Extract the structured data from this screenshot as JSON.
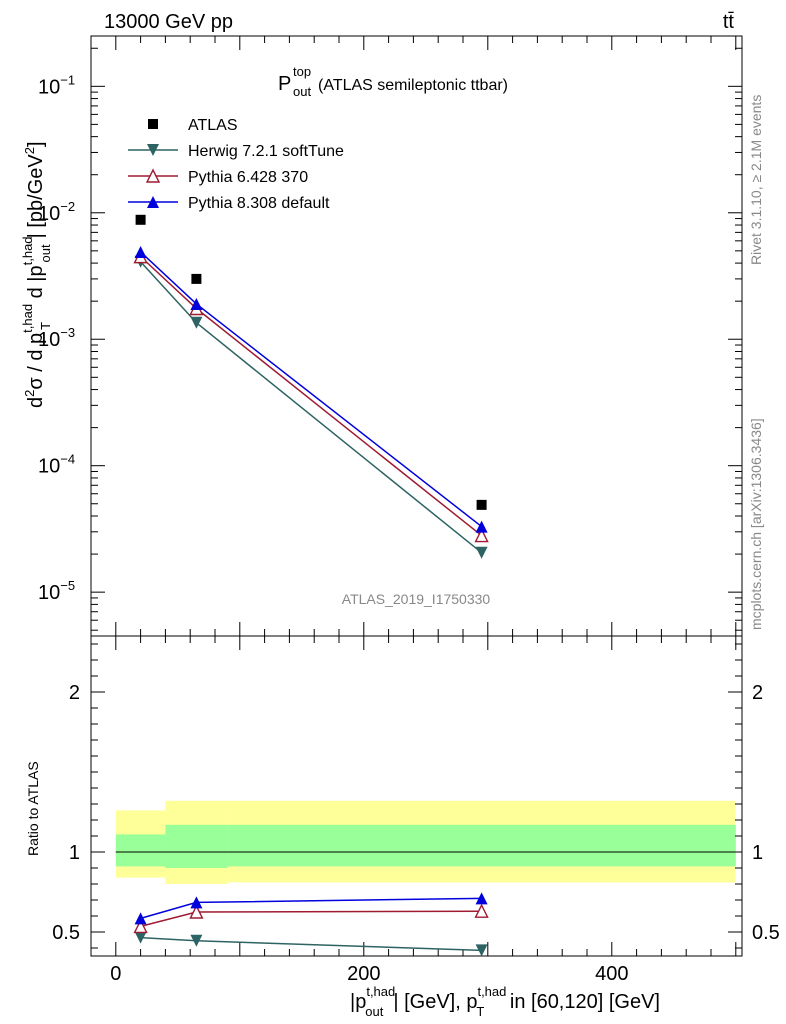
{
  "header": {
    "energy_label": "13000 GeV pp",
    "process_label": "tt̄"
  },
  "side_labels": {
    "rivet": "Rivet 3.1.10, ≥ 2.1M events",
    "mcplots": "mcplots.cern.ch [arXiv:1306.3436]"
  },
  "watermark": "ATLAS_2019_I1750330",
  "colors": {
    "atlas": "#000000",
    "herwig": "#2e6363",
    "pythia6": "#9e1b32",
    "pythia8": "#0000dd",
    "band_inner": "#99ff99",
    "band_outer": "#ffff99"
  },
  "chart_data": [
    {
      "type": "scatter",
      "panel": "main",
      "title": {
        "main": "P",
        "sup": "top",
        "sub": "out",
        "rest": " (ATLAS semileptonic ttbar)"
      },
      "ylabel": "d²σ / d p_T^{t,had} d |p_out^{t,had}| [pb/GeV²]",
      "yscale": "log",
      "ylim": [
        4.5e-06,
        0.25
      ],
      "xlim": [
        -20,
        505
      ],
      "yticks": [
        {
          "value": 1e-05,
          "base": "10",
          "exp": "−5"
        },
        {
          "value": 0.0001,
          "base": "10",
          "exp": "−4"
        },
        {
          "value": 0.001,
          "base": "10",
          "exp": "−3"
        },
        {
          "value": 0.01,
          "base": "10",
          "exp": "−2"
        },
        {
          "value": 0.1,
          "base": "10",
          "exp": "−1"
        }
      ],
      "legend_position": "top-left",
      "series": [
        {
          "name": "ATLAS",
          "marker": "square",
          "line": false,
          "x": [
            20,
            65,
            295
          ],
          "y": [
            0.0088,
            0.003,
            4.9e-05
          ]
        },
        {
          "name": "Herwig 7.2.1 softTune",
          "marker": "triangle-down",
          "line": true,
          "x": [
            20,
            65,
            295
          ],
          "y": [
            0.0041,
            0.00135,
            2.05e-05
          ]
        },
        {
          "name": "Pythia 6.428 370",
          "marker": "triangle-up-open",
          "line": true,
          "x": [
            20,
            65,
            295
          ],
          "y": [
            0.0045,
            0.00175,
            2.8e-05
          ]
        },
        {
          "name": "Pythia 8.308 default",
          "marker": "triangle-up",
          "line": true,
          "x": [
            20,
            65,
            295
          ],
          "y": [
            0.0049,
            0.0019,
            3.3e-05
          ]
        }
      ]
    },
    {
      "type": "line",
      "panel": "ratio",
      "ylabel": "Ratio to ATLAS",
      "xlabel": "|p_out^{t,had}| [GeV], p_T^{t,had} in [60,120] [GeV]",
      "ylim": [
        0.35,
        2.35
      ],
      "xlim": [
        -20,
        505
      ],
      "xticks": [
        {
          "value": 0,
          "label": "0"
        },
        {
          "value": 200,
          "label": "200"
        },
        {
          "value": 400,
          "label": "400"
        }
      ],
      "yticks": [
        {
          "value": 0.5,
          "label": "0.5"
        },
        {
          "value": 1,
          "label": "1"
        },
        {
          "value": 2,
          "label": "2"
        }
      ],
      "bands": [
        {
          "x0": 0,
          "x1": 40,
          "inner": [
            0.91,
            1.11
          ],
          "outer": [
            0.84,
            1.26
          ]
        },
        {
          "x0": 40,
          "x1": 90,
          "inner": [
            0.9,
            1.17
          ],
          "outer": [
            0.8,
            1.32
          ]
        },
        {
          "x0": 90,
          "x1": 500,
          "inner": [
            0.91,
            1.17
          ],
          "outer": [
            0.81,
            1.32
          ]
        }
      ],
      "series": [
        {
          "name": "Herwig 7.2.1 softTune",
          "marker": "triangle-down",
          "x": [
            20,
            65,
            295
          ],
          "y": [
            0.465,
            0.445,
            0.385
          ]
        },
        {
          "name": "Pythia 6.428 370",
          "marker": "triangle-up-open",
          "x": [
            20,
            65,
            295
          ],
          "y": [
            0.535,
            0.625,
            0.63
          ]
        },
        {
          "name": "Pythia 8.308 default",
          "marker": "triangle-up",
          "x": [
            20,
            65,
            295
          ],
          "y": [
            0.585,
            0.685,
            0.71
          ]
        }
      ]
    }
  ]
}
